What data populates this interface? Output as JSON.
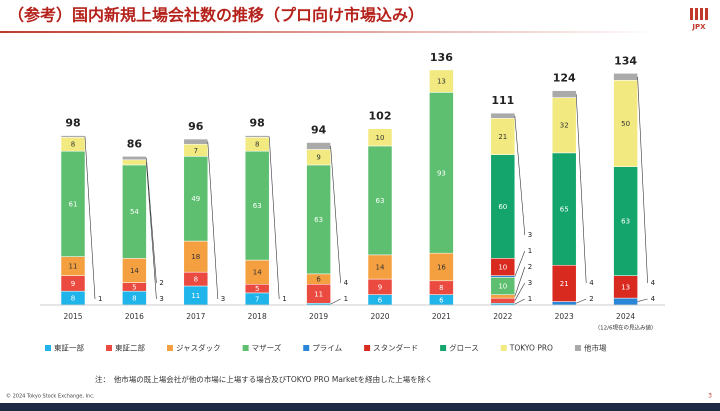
{
  "chart_data": {
    "type": "stacked_bar",
    "title": "（参考）国内新規上場会社数の推移（プロ向け市場込み）",
    "logo": "JPX",
    "categories": [
      "2015",
      "2016",
      "2017",
      "2018",
      "2019",
      "2020",
      "2021",
      "2022",
      "2023",
      "2024"
    ],
    "last_category_note": "（12/6現在の見込み値）",
    "totals": [
      98,
      86,
      96,
      98,
      94,
      102,
      136,
      111,
      124,
      134
    ],
    "series": [
      {
        "name": "東証一部",
        "color": "#1fb4ea",
        "values": [
          8,
          8,
          11,
          7,
          1,
          6,
          6,
          1,
          0,
          0
        ]
      },
      {
        "name": "東証二部",
        "color": "#ea4a3f",
        "values": [
          9,
          5,
          8,
          5,
          11,
          9,
          8,
          3,
          0,
          0
        ]
      },
      {
        "name": "ジャスダック",
        "color": "#f5a040",
        "values": [
          11,
          14,
          18,
          14,
          6,
          14,
          16,
          2,
          0,
          0
        ]
      },
      {
        "name": "マザーズ",
        "color": "#5dbf6f",
        "values": [
          61,
          54,
          49,
          63,
          63,
          63,
          93,
          10,
          0,
          0
        ]
      },
      {
        "name": "プライム",
        "color": "#2a86d6",
        "values": [
          0,
          0,
          0,
          0,
          0,
          0,
          0,
          1,
          2,
          4
        ]
      },
      {
        "name": "スタンダード",
        "color": "#d92a20",
        "values": [
          0,
          0,
          0,
          0,
          0,
          0,
          0,
          10,
          21,
          13
        ]
      },
      {
        "name": "グロース",
        "color": "#13a56b",
        "values": [
          0,
          0,
          0,
          0,
          0,
          0,
          0,
          60,
          65,
          63
        ]
      },
      {
        "name": "TOKYO PRO",
        "color": "#f2ea80",
        "values": [
          8,
          3,
          7,
          8,
          9,
          10,
          13,
          21,
          32,
          50
        ]
      },
      {
        "name": "他市場",
        "color": "#aaaaaa",
        "values": [
          1,
          2,
          3,
          1,
          4,
          0,
          0,
          3,
          4,
          4
        ]
      }
    ],
    "ylim": [
      0,
      140
    ],
    "footnote": "注：　他市場の既上場会社が他の市場に上場する場合及びTOKYO PRO Marketを経由した上場を除く",
    "copyright": "© 2024 Tokyo Stock Exchange, Inc.",
    "page_number": "3"
  }
}
